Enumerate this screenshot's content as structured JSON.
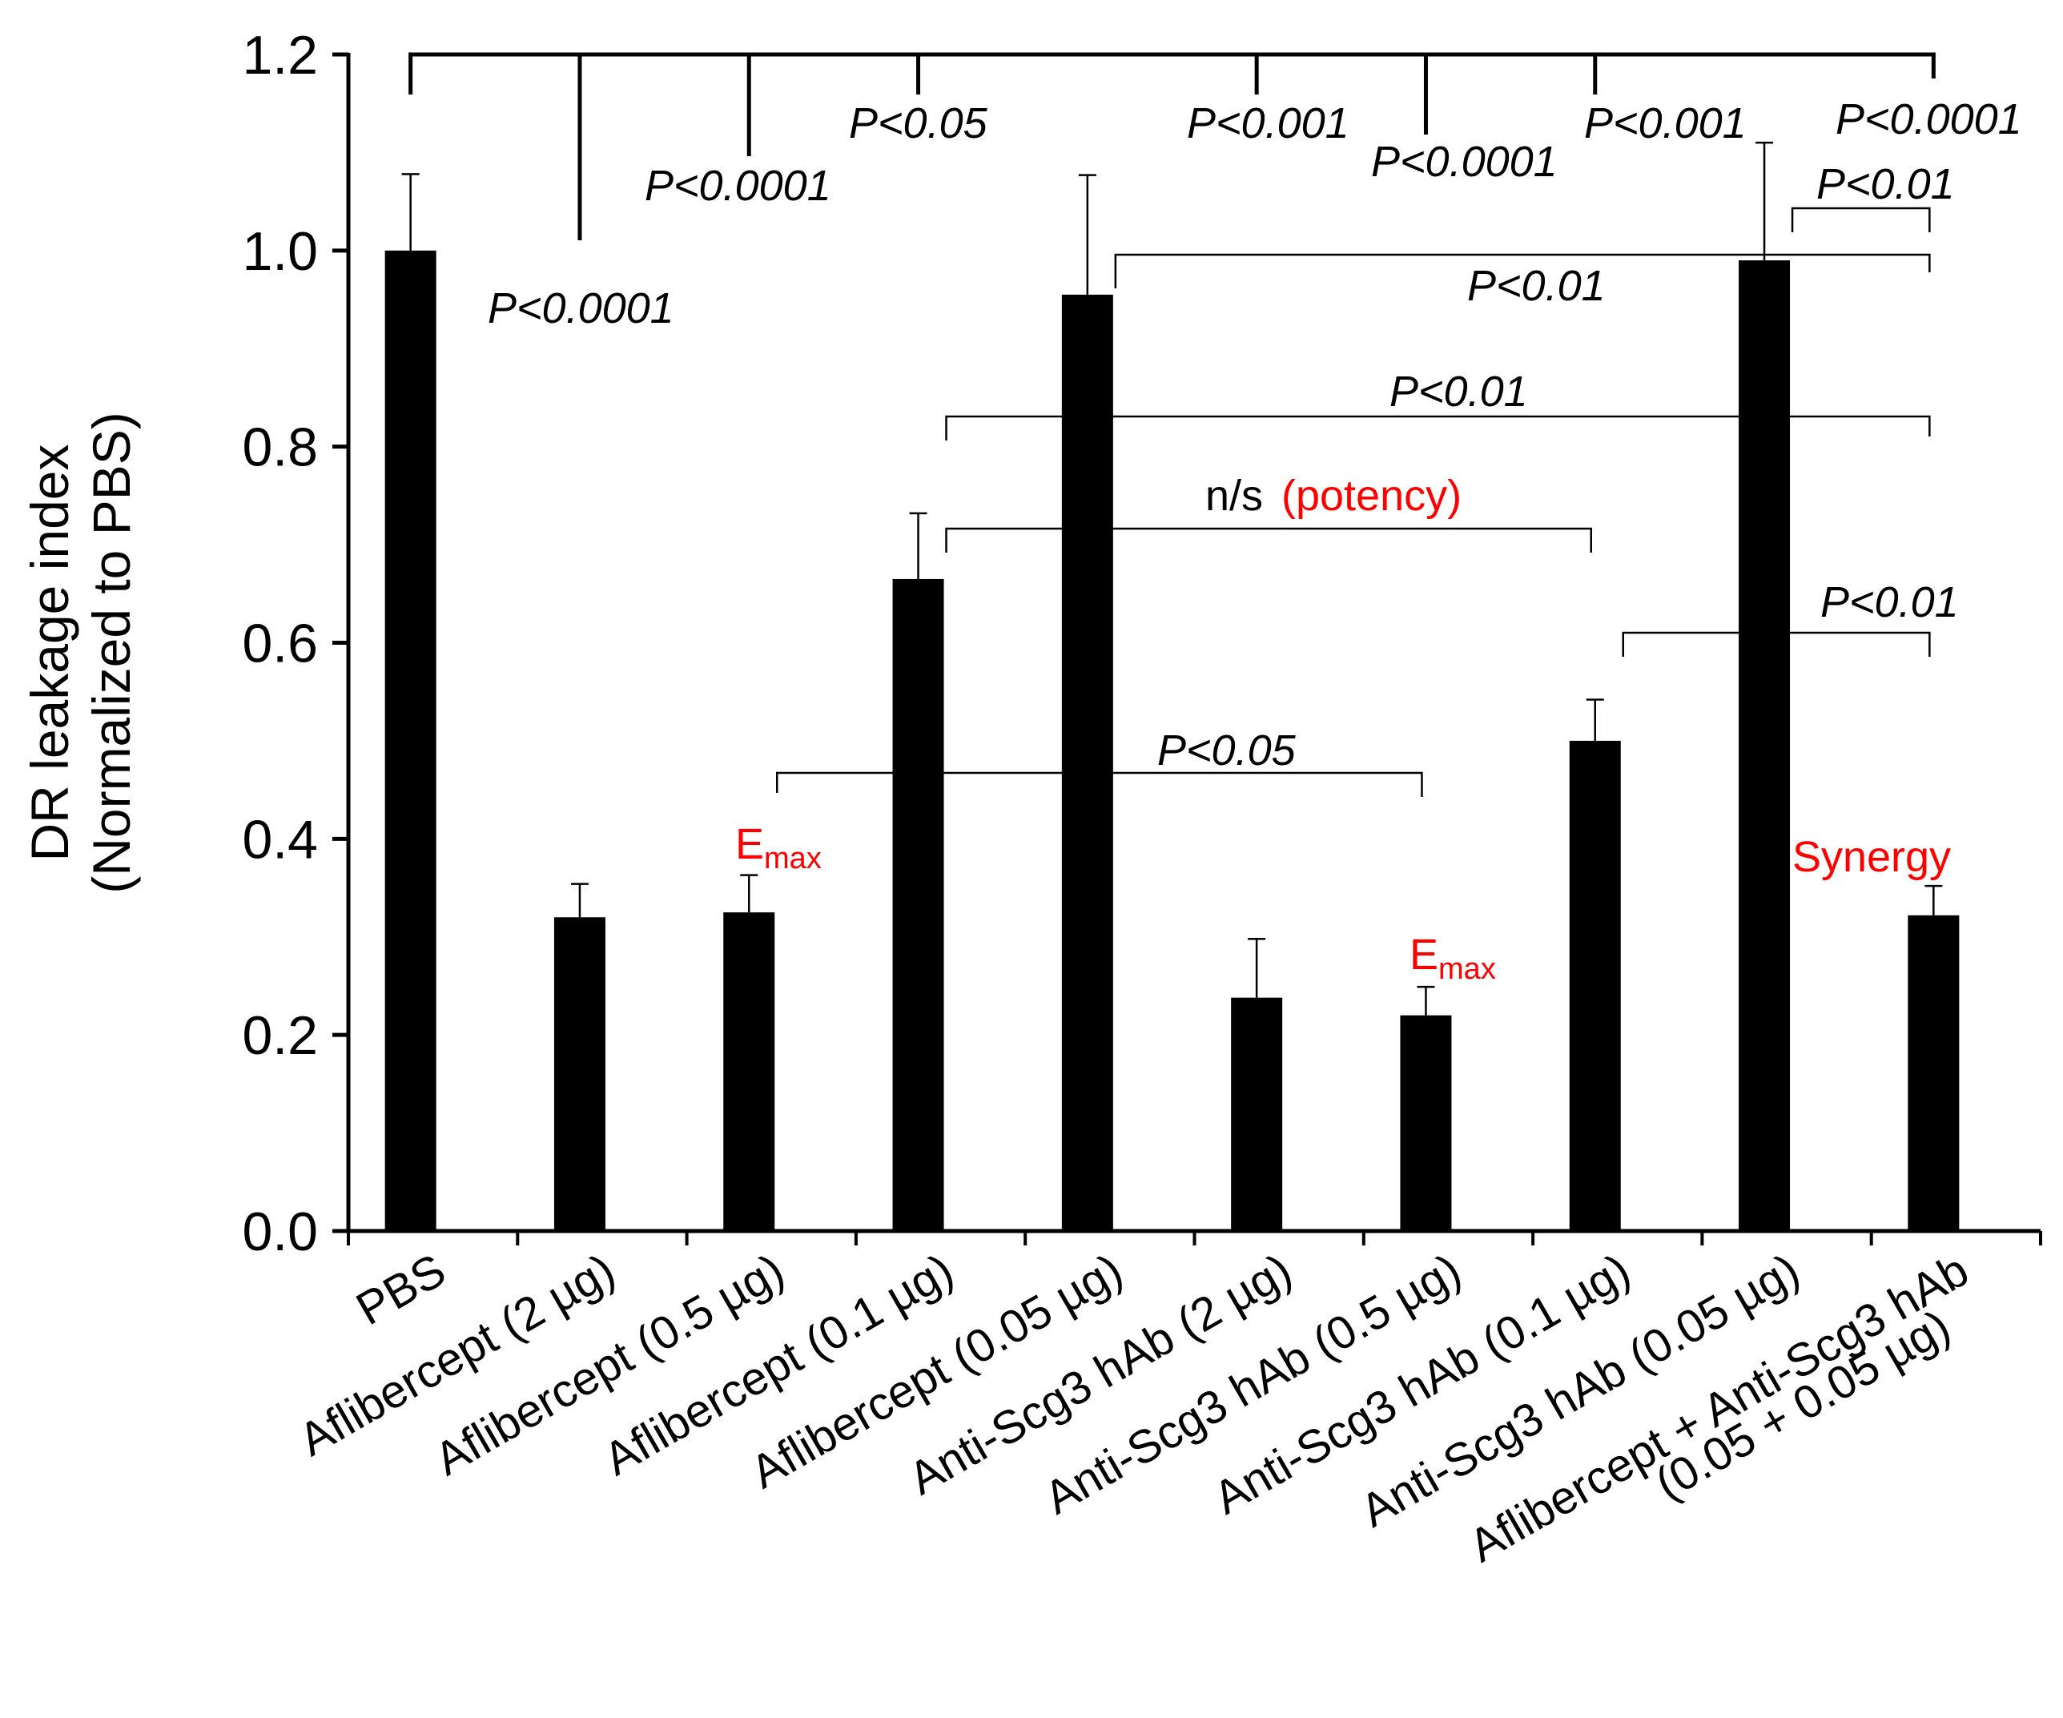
{
  "chart_data": {
    "type": "bar",
    "ylabel_line1": "DR leakage index",
    "ylabel_line2": "(Normalized to PBS)",
    "ylim": [
      0,
      1.2
    ],
    "yticks": [
      "0.0",
      "0.2",
      "0.4",
      "0.6",
      "0.8",
      "1.0",
      "1.2"
    ],
    "grid": false,
    "categories": [
      "PBS",
      "Aflibercept (2 µg)",
      "Aflibercept (0.5 µg)",
      "Aflibercept (0.1 µg)",
      "Aflibercept (0.05 µg)",
      "Anti-Scg3 hAb (2 µg)",
      "Anti-Scg3 hAb (0.5 µg)",
      "Anti-Scg3 hAb (0.1 µg)",
      "Anti-Scg3 hAb (0.05 µg)",
      "Aflibercept + Anti-Scg3 hAb"
    ],
    "last_category_line2": "(0.05 + 0.05 µg)",
    "values": [
      1.0,
      0.32,
      0.325,
      0.665,
      0.955,
      0.238,
      0.22,
      0.5,
      0.99,
      0.322
    ],
    "errors": [
      0.078,
      0.034,
      0.038,
      0.067,
      0.122,
      0.06,
      0.029,
      0.042,
      0.12,
      0.03
    ],
    "bar_color": "#000000",
    "accent_color": "#ff0000",
    "annotations": {
      "top_bracket_labels": [
        "P<0.0001",
        "P<0.0001",
        "P<0.05",
        "P<0.001",
        "P<0.0001",
        "P<0.001",
        "P<0.0001"
      ],
      "bracket_labels": [
        "P<0.01",
        "P<0.01",
        "P<0.01",
        "n/s",
        "P<0.01",
        "P<0.05"
      ],
      "potency_label": "(potency)",
      "emax_label": "E",
      "emax_sub": "max",
      "synergy_label": "Synergy"
    }
  }
}
